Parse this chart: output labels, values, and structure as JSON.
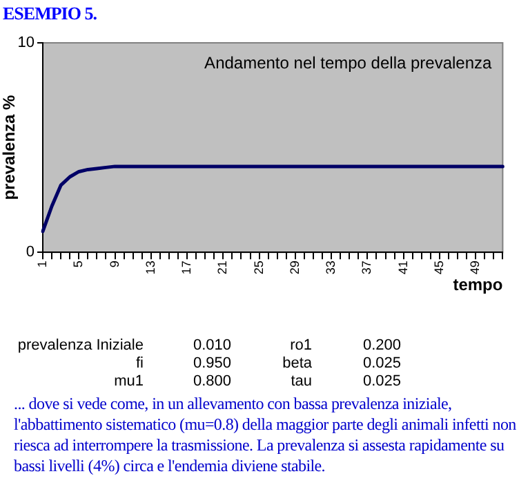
{
  "chart_data": {
    "type": "line",
    "title": "ESEMPIO 5.",
    "subtitle": "Andamento nel tempo della prevalenza",
    "xlabel": "tempo",
    "ylabel": "prevalenza %",
    "categories": [
      "1",
      null,
      null,
      null,
      "5",
      null,
      null,
      null,
      "9",
      null,
      null,
      null,
      "13",
      null,
      null,
      null,
      "17",
      null,
      null,
      null,
      "21",
      null,
      null,
      null,
      "25",
      null,
      null,
      null,
      "29",
      null,
      null,
      null,
      "33",
      null,
      null,
      null,
      "37",
      null,
      null,
      null,
      "41",
      null,
      null,
      null,
      "45",
      null,
      null,
      null,
      "49",
      null,
      null,
      null
    ],
    "series": [
      {
        "color": "#000066",
        "values": [
          1.0,
          2.2,
          3.2,
          3.6,
          3.85,
          3.95,
          4.0,
          4.05,
          4.1,
          4.1,
          4.1,
          4.1,
          4.1,
          4.1,
          4.1,
          4.1,
          4.1,
          4.1,
          4.1,
          4.1,
          4.1,
          4.1,
          4.1,
          4.1,
          4.1,
          4.1,
          4.1,
          4.1,
          4.1,
          4.1,
          4.1,
          4.1,
          4.1,
          4.1,
          4.1,
          4.1,
          4.1,
          4.1,
          4.1,
          4.1,
          4.1,
          4.1,
          4.1,
          4.1,
          4.1,
          4.1,
          4.1,
          4.1,
          4.1,
          4.1,
          4.1,
          4.1
        ]
      }
    ],
    "ylim": [
      0,
      10
    ],
    "yticks": [
      0,
      10
    ],
    "grid": false,
    "legend": false,
    "marker": "none",
    "line_style": "solid",
    "annotations": [
      "prevalenza Iniziale",
      "0.010",
      "ro1",
      "0.200",
      "fi",
      "0.950",
      "beta",
      "0.025",
      "mu1",
      "0.800",
      "tau",
      "0.025",
      "... dove si vede come, in un allevamento con bassa prevalenza iniziale, l'abbattimento sistematico (mu=0.8) della maggior parte degli animali infetti non  riesca ad interrompere  la trasmissione. La prevalenza si assesta rapidamente  su bassi livelli (4%) circa e  l'endemia diviene stabile."
    ]
  }
}
